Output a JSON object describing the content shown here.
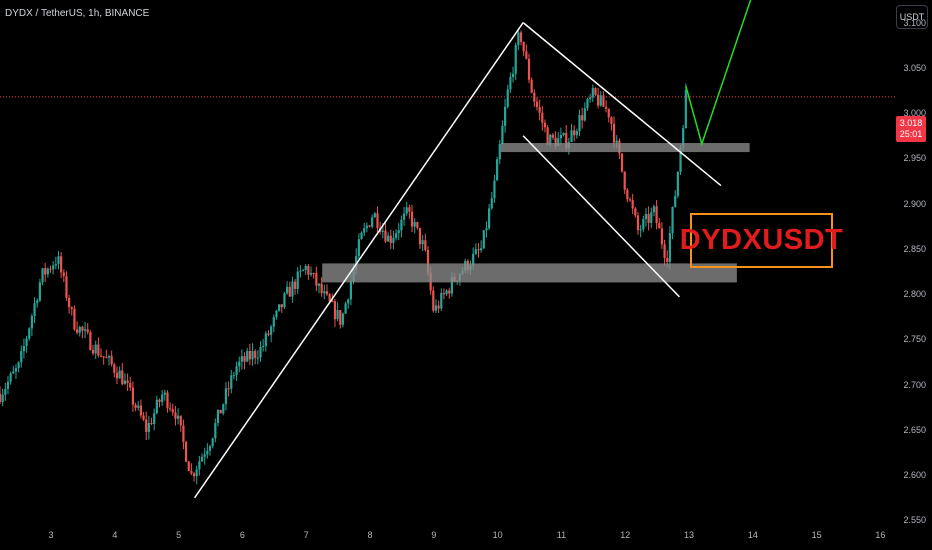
{
  "header": {
    "symbol_line": "DYDX / TetherUS, 1h, BINANCE",
    "currency_button": "USDT"
  },
  "annotation": {
    "ticker_text": "DYDXUSDT"
  },
  "price_label": {
    "price": "3.018",
    "countdown": "25:01"
  },
  "colors": {
    "background": "#000000",
    "up_candle": "#26a69a",
    "down_candle": "#ef5350",
    "trendlines": "#ffffff",
    "projection_arrow": "#22dd22",
    "zones": "#8a8a8a",
    "current_price_line": "#f23645",
    "ticker_text": "#e01c1c",
    "ticker_border": "#f7931a"
  },
  "chart_data": {
    "type": "candlestick",
    "symbol": "DYDX / TetherUS",
    "timeframe": "1h",
    "exchange": "BINANCE",
    "x_ticks": [
      "3",
      "4",
      "5",
      "6",
      "7",
      "8",
      "9",
      "10",
      "11",
      "12",
      "13",
      "14",
      "15",
      "16"
    ],
    "y_ticks": [
      "3.100",
      "3.050",
      "3.000",
      "2.950",
      "2.900",
      "2.850",
      "2.800",
      "2.750",
      "2.700",
      "2.650",
      "2.600",
      "2.550"
    ],
    "ylim": [
      2.545,
      3.125
    ],
    "xlim": [
      2.2,
      16.15
    ],
    "current_price": 3.018,
    "price_path": [
      [
        2.2,
        2.69
      ],
      [
        2.5,
        2.72
      ],
      [
        2.85,
        2.82
      ],
      [
        3.1,
        2.84
      ],
      [
        3.35,
        2.77
      ],
      [
        3.7,
        2.74
      ],
      [
        4.1,
        2.71
      ],
      [
        4.5,
        2.65
      ],
      [
        4.75,
        2.69
      ],
      [
        4.95,
        2.67
      ],
      [
        5.2,
        2.6
      ],
      [
        5.5,
        2.64
      ],
      [
        5.9,
        2.72
      ],
      [
        6.3,
        2.74
      ],
      [
        6.7,
        2.8
      ],
      [
        7.0,
        2.83
      ],
      [
        7.25,
        2.8
      ],
      [
        7.55,
        2.77
      ],
      [
        7.85,
        2.86
      ],
      [
        8.05,
        2.89
      ],
      [
        8.3,
        2.86
      ],
      [
        8.6,
        2.89
      ],
      [
        8.85,
        2.85
      ],
      [
        9.0,
        2.78
      ],
      [
        9.35,
        2.82
      ],
      [
        9.75,
        2.85
      ],
      [
        9.95,
        2.92
      ],
      [
        10.15,
        3.02
      ],
      [
        10.35,
        3.09
      ],
      [
        10.55,
        3.02
      ],
      [
        10.8,
        2.97
      ],
      [
        11.1,
        2.97
      ],
      [
        11.5,
        3.02
      ],
      [
        11.75,
        3.0
      ],
      [
        12.0,
        2.92
      ],
      [
        12.2,
        2.87
      ],
      [
        12.45,
        2.89
      ],
      [
        12.65,
        2.84
      ],
      [
        12.8,
        2.92
      ],
      [
        12.95,
        3.02
      ]
    ],
    "zones": [
      {
        "x0": 10.05,
        "x1": 13.95,
        "y0": 2.957,
        "y1": 2.967
      },
      {
        "x0": 7.25,
        "x1": 13.75,
        "y0": 2.813,
        "y1": 2.834
      }
    ],
    "trendlines": [
      {
        "from": [
          5.25,
          2.575
        ],
        "to": [
          10.4,
          3.1
        ]
      },
      {
        "from": [
          10.4,
          3.1
        ],
        "to": [
          13.5,
          2.92
        ]
      },
      {
        "from": [
          10.4,
          2.975
        ],
        "to": [
          12.85,
          2.797
        ]
      }
    ],
    "projection": [
      [
        12.95,
        3.03
      ],
      [
        13.2,
        2.966
      ],
      [
        14.35,
        3.205
      ]
    ]
  }
}
